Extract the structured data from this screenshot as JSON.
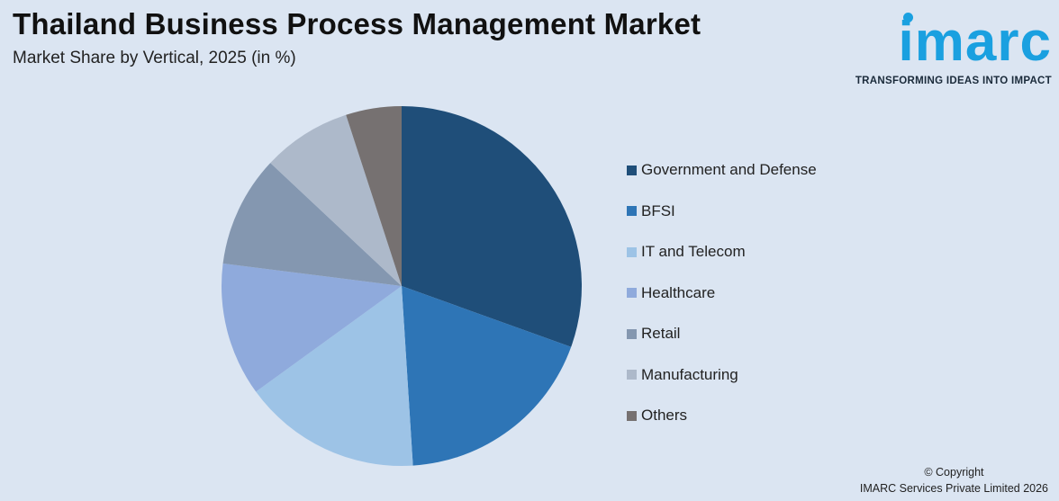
{
  "header": {
    "title": "Thailand Business Process Management Market",
    "subtitle": "Market Share by Vertical, 2025 (in %)"
  },
  "logo": {
    "word": "imarc",
    "tagline": "TRANSFORMING IDEAS INTO IMPACT",
    "color": "#1aa0e0"
  },
  "chart_data": {
    "type": "pie",
    "title": "",
    "categories": [
      "Government and Defense",
      "BFSI",
      "IT and Telecom",
      "Healthcare",
      "Retail",
      "Manufacturing",
      "Others"
    ],
    "values": [
      30.5,
      18.5,
      16,
      12,
      10,
      8,
      5
    ],
    "colors": [
      "#1f4e79",
      "#2e75b6",
      "#9dc3e6",
      "#8faadc",
      "#8497b0",
      "#adb9ca",
      "#767171"
    ],
    "start_angle_deg": 0,
    "direction": "clockwise",
    "legend_position": "right"
  },
  "footer": {
    "copyright_line1": "© Copyright",
    "copyright_line2": "IMARC Services Private Limited 2026"
  }
}
